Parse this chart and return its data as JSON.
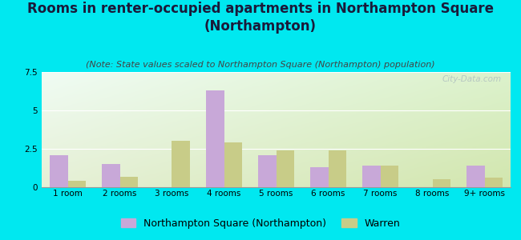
{
  "title": "Rooms in renter-occupied apartments in Northampton Square\n(Northampton)",
  "subtitle": "(Note: State values scaled to Northampton Square (Northampton) population)",
  "categories": [
    "1 room",
    "2 rooms",
    "3 rooms",
    "4 rooms",
    "5 rooms",
    "6 rooms",
    "7 rooms",
    "8 rooms",
    "9+ rooms"
  ],
  "northampton_values": [
    2.1,
    1.5,
    0.0,
    6.3,
    2.1,
    1.3,
    1.4,
    0.0,
    1.4
  ],
  "warren_values": [
    0.4,
    0.7,
    3.0,
    2.9,
    2.4,
    2.4,
    1.4,
    0.5,
    0.6
  ],
  "northampton_color": "#c8a8d8",
  "warren_color": "#c8cc88",
  "ylim": [
    0,
    7.5
  ],
  "yticks": [
    0,
    2.5,
    5,
    7.5
  ],
  "background_outer": "#00e8f0",
  "title_fontsize": 12,
  "subtitle_fontsize": 8,
  "tick_fontsize": 7.5,
  "legend_fontsize": 9,
  "watermark_text": "City-Data.com",
  "bar_width": 0.35
}
